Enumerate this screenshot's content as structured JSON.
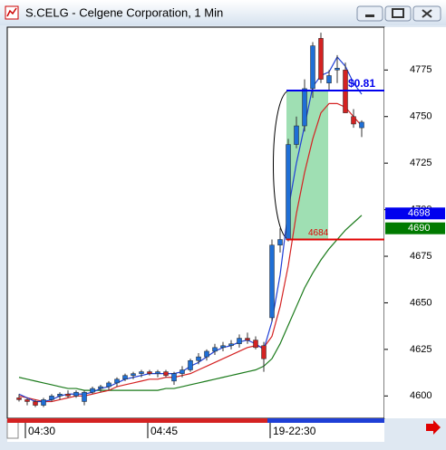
{
  "chart_data": {
    "type": "candlestick",
    "title": "S.CELG - Celgene Corporation, 1 Min",
    "categories": [
      null,
      "04:30",
      null,
      null,
      null,
      null,
      null,
      null,
      null,
      null,
      null,
      null,
      null,
      null,
      null,
      null,
      "04:45",
      null,
      null,
      null,
      null,
      null,
      null,
      null,
      null,
      null,
      null,
      null,
      null,
      null,
      null,
      "19-22:30",
      null,
      null,
      null,
      null,
      null,
      null,
      null,
      null,
      null,
      null,
      null
    ],
    "open": [
      4599,
      4598,
      4597,
      4595,
      4598,
      4600,
      4601,
      4600,
      4597,
      4602,
      4604,
      4605,
      4607,
      4609,
      4611,
      4612,
      4613,
      4612,
      4613,
      4608,
      4612,
      4614,
      4619,
      4621,
      4624,
      4626,
      4627,
      4628,
      4631,
      4630,
      4627,
      4642,
      4681,
      4684,
      4735,
      4745,
      4765,
      4792,
      4768,
      4775,
      4775,
      4750,
      4744
    ],
    "high": [
      4601,
      4599,
      4598,
      4599,
      4601,
      4602,
      4603,
      4603,
      4603,
      4605,
      4606,
      4608,
      4610,
      4612,
      4613,
      4614,
      4614,
      4614,
      4614,
      4613,
      4616,
      4620,
      4623,
      4625,
      4628,
      4629,
      4630,
      4633,
      4634,
      4632,
      4629,
      4684,
      4690,
      4738,
      4750,
      4770,
      4790,
      4795,
      4775,
      4783,
      4779,
      4754,
      4748
    ],
    "low": [
      4597,
      4595,
      4594,
      4594,
      4597,
      4598,
      4599,
      4599,
      4595,
      4601,
      4602,
      4603,
      4605,
      4608,
      4609,
      4610,
      4611,
      4610,
      4610,
      4606,
      4610,
      4613,
      4617,
      4619,
      4622,
      4624,
      4625,
      4626,
      4628,
      4625,
      4613,
      4640,
      4677,
      4683,
      4733,
      4742,
      4760,
      4768,
      4764,
      4768,
      4752,
      4744,
      4739
    ],
    "close": [
      4598,
      4597,
      4595,
      4598,
      4600,
      4601,
      4600,
      4602,
      4602,
      4604,
      4605,
      4607,
      4609,
      4611,
      4612,
      4613,
      4612,
      4613,
      4611,
      4612,
      4614,
      4619,
      4621,
      4624,
      4626,
      4627,
      4628,
      4631,
      4630,
      4626,
      4620,
      4681,
      4684,
      4735,
      4745,
      4765,
      4788,
      4770,
      4772,
      4776,
      4752,
      4746,
      4747
    ],
    "up_color": "#1f6fd6",
    "down_color": "#d42222",
    "overlays": [
      {
        "color": "#1a7a1a",
        "values": [
          4610,
          4609,
          4608,
          4607,
          4606,
          4605,
          4604,
          4604,
          4603,
          4603,
          4603,
          4603,
          4603,
          4603,
          4603,
          4603,
          4603,
          4603,
          4604,
          4604,
          4605,
          4606,
          4607,
          4608,
          4609,
          4610,
          4611,
          4612,
          4613,
          4614,
          4616,
          4620,
          4628,
          4638,
          4648,
          4658,
          4666,
          4673,
          4679,
          4684,
          4689,
          4693,
          4697
        ]
      },
      {
        "color": "#d42222",
        "values": [
          4600,
          4599,
          4598,
          4597,
          4597,
          4598,
          4599,
          4600,
          4600,
          4601,
          4602,
          4603,
          4605,
          4606,
          4607,
          4608,
          4609,
          4609,
          4610,
          4610,
          4611,
          4612,
          4614,
          4616,
          4618,
          4620,
          4622,
          4624,
          4626,
          4627,
          4626,
          4632,
          4648,
          4670,
          4698,
          4720,
          4738,
          4752,
          4757,
          4757,
          4755,
          4750,
          4745
        ]
      },
      {
        "color": "#1f3fd6",
        "values": [
          4601,
          4599,
          4597,
          4597,
          4598,
          4600,
          4601,
          4601,
          4601,
          4602,
          4604,
          4605,
          4607,
          4609,
          4610,
          4611,
          4612,
          4612,
          4612,
          4612,
          4613,
          4616,
          4618,
          4621,
          4624,
          4626,
          4627,
          4629,
          4630,
          4628,
          4625,
          4640,
          4665,
          4700,
          4725,
          4745,
          4766,
          4772,
          4774,
          4782,
          4777,
          4768,
          4762
        ]
      }
    ],
    "levels": [
      {
        "value": 4764,
        "color": "#0000ee",
        "label": "$0.81"
      },
      {
        "value": 4684,
        "color": "#e00000",
        "label": 4684
      }
    ],
    "zone": {
      "from": 4684,
      "to": 4764,
      "color": "#7fd49a"
    },
    "badges": [
      {
        "value": 4698,
        "color": "#0000ee"
      },
      {
        "value": 4690,
        "color": "#007a00"
      }
    ],
    "ylim": [
      4588,
      4798
    ],
    "yticks": [
      4600,
      4625,
      4650,
      4675,
      4700,
      4725,
      4750,
      4775
    ]
  }
}
